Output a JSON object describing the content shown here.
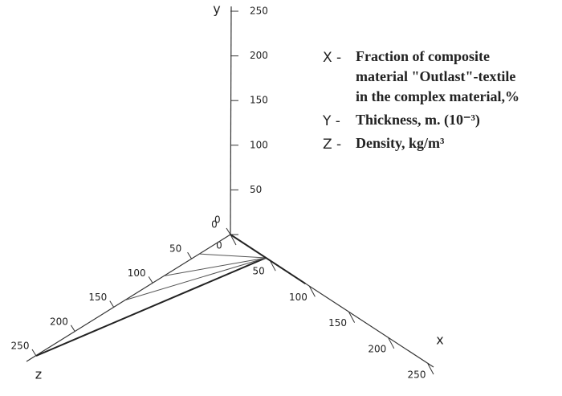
{
  "chart_data": {
    "type": "line3d",
    "xlabel": "x",
    "ylabel": "y",
    "zlabel": "z",
    "xlim": [
      0,
      250
    ],
    "ylim": [
      0,
      250
    ],
    "zlim": [
      0,
      250
    ],
    "xticks": [
      0,
      50,
      100,
      150,
      200,
      250
    ],
    "yticks": [
      0,
      50,
      100,
      150,
      200,
      250
    ],
    "zticks": [
      0,
      50,
      100,
      150,
      200,
      250
    ],
    "series": [
      {
        "color": "#222222",
        "x": [
          0,
          45
        ],
        "y": [
          0,
          0
        ],
        "z": [
          250,
          0
        ]
      },
      {
        "color": "#555555",
        "x": [
          0,
          45
        ],
        "y": [
          0,
          0
        ],
        "z": [
          135,
          0
        ]
      },
      {
        "color": "#555555",
        "x": [
          0,
          45
        ],
        "y": [
          0,
          0
        ],
        "z": [
          85,
          0
        ]
      },
      {
        "color": "#555555",
        "x": [
          0,
          45
        ],
        "y": [
          0,
          0
        ],
        "z": [
          40,
          0
        ]
      },
      {
        "color": "#222222",
        "x": [
          0,
          95
        ],
        "y": [
          0,
          0
        ],
        "z": [
          0,
          0
        ]
      }
    ],
    "legend": [
      {
        "key": "X -",
        "lines": [
          "Fraction of composite",
          "material \"Outlast\"-textile",
          "in the complex material,%"
        ]
      },
      {
        "key": "Y -",
        "lines": [
          "Thickness, m. (10⁻³)"
        ]
      },
      {
        "key": "Z -",
        "lines": [
          "Density, kg/m³"
        ]
      }
    ]
  }
}
